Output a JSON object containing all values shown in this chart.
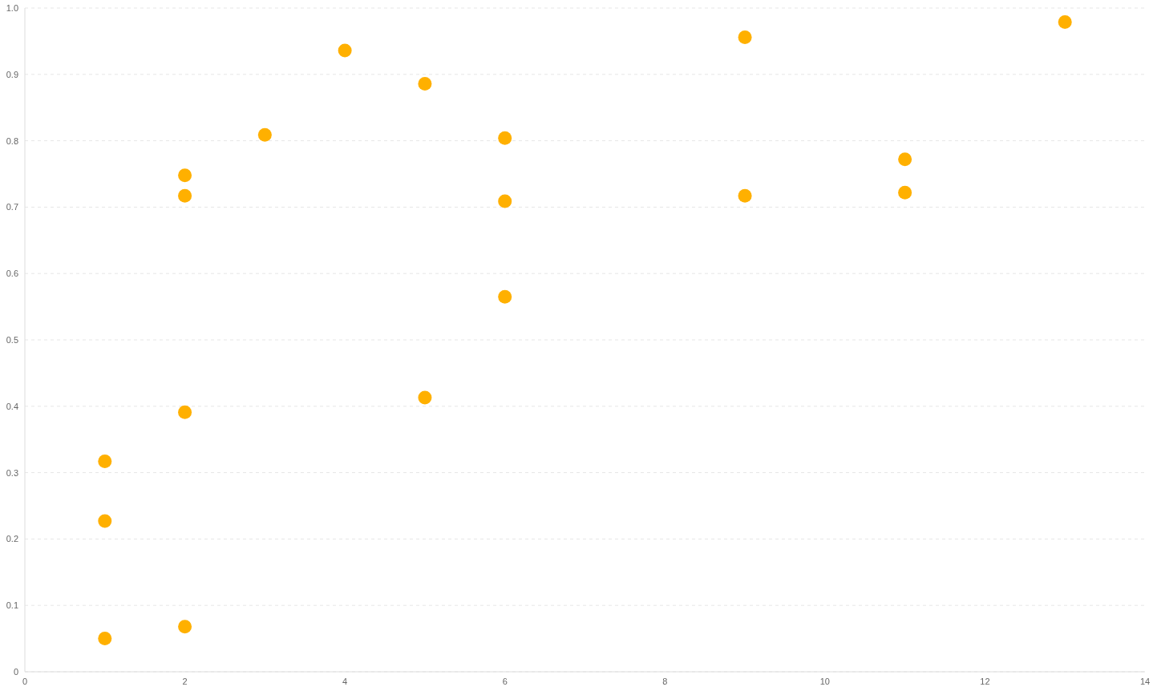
{
  "chart_data": {
    "type": "scatter",
    "x": [
      1,
      1,
      1,
      2,
      2,
      2,
      2,
      3,
      4,
      5,
      5,
      6,
      6,
      6,
      9,
      9,
      11,
      11,
      13
    ],
    "values": [
      0.317,
      0.227,
      0.05,
      0.748,
      0.717,
      0.391,
      0.068,
      0.809,
      0.936,
      0.886,
      0.413,
      0.804,
      0.709,
      0.565,
      0.956,
      0.717,
      0.772,
      0.722,
      0.979
    ],
    "color": "#ffb000",
    "xlim": [
      0,
      14
    ],
    "xticks": [
      0,
      2,
      4,
      6,
      8,
      10,
      12,
      14
    ],
    "ylim": [
      0,
      1
    ],
    "yticks": [
      0,
      0.1,
      0.2,
      0.3,
      0.4,
      0.5,
      0.6,
      0.7,
      0.8,
      0.9,
      {
        "value": 1,
        "label": "1.0"
      }
    ],
    "grid": "y",
    "marker": "circle"
  }
}
